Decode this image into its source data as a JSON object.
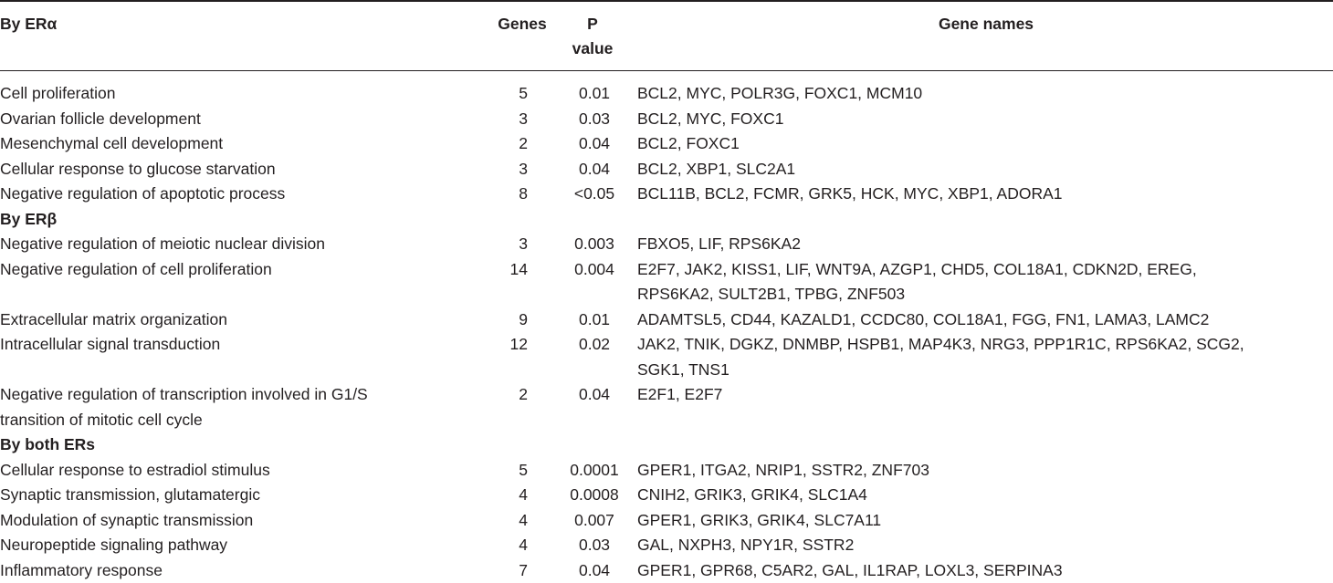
{
  "header": {
    "col1": "By ERα",
    "col2": "Genes",
    "col3": "P value",
    "col4": "Gene names"
  },
  "sections": [
    {
      "title": "",
      "rows": [
        {
          "term": "Cell proliferation",
          "genes": "5",
          "p": "0.01",
          "names": "BCL2, MYC, POLR3G, FOXC1, MCM10"
        },
        {
          "term": "Ovarian follicle development",
          "genes": "3",
          "p": "0.03",
          "names": "BCL2, MYC, FOXC1"
        },
        {
          "term": "Mesenchymal cell development",
          "genes": "2",
          "p": "0.04",
          "names": "BCL2, FOXC1"
        },
        {
          "term": "Cellular response to glucose starvation",
          "genes": "3",
          "p": "0.04",
          "names": "BCL2, XBP1, SLC2A1"
        },
        {
          "term": "Negative regulation of apoptotic process",
          "genes": "8",
          "p": "<0.05",
          "names": "BCL11B, BCL2, FCMR, GRK5, HCK, MYC, XBP1, ADORA1"
        }
      ]
    },
    {
      "title": "By ERβ",
      "rows": [
        {
          "term": "Negative regulation of meiotic nuclear division",
          "genes": "3",
          "p": "0.003",
          "names": "FBXO5, LIF, RPS6KA2"
        },
        {
          "term": "Negative regulation of cell proliferation",
          "genes": "14",
          "p": "0.004",
          "names": "E2F7, JAK2, KISS1, LIF, WNT9A, AZGP1, CHD5, COL18A1, CDKN2D, EREG,",
          "names2": "RPS6KA2, SULT2B1, TPBG, ZNF503"
        },
        {
          "term": "Extracellular matrix organization",
          "genes": "9",
          "p": "0.01",
          "names": "ADAMTSL5, CD44, KAZALD1, CCDC80, COL18A1, FGG, FN1, LAMA3, LAMC2"
        },
        {
          "term": "Intracellular signal transduction",
          "genes": "12",
          "p": "0.02",
          "names": "JAK2, TNIK, DGKZ, DNMBP, HSPB1, MAP4K3, NRG3, PPP1R1C, RPS6KA2, SCG2,",
          "names2": "SGK1, TNS1"
        },
        {
          "term": "Negative regulation of transcription involved in G1/S",
          "term2": "transition of mitotic cell cycle",
          "genes": "2",
          "p": "0.04",
          "names": "E2F1, E2F7"
        }
      ]
    },
    {
      "title": "By both ERs",
      "rows": [
        {
          "term": "Cellular response to estradiol stimulus",
          "genes": "5",
          "p": "0.0001",
          "names": "GPER1, ITGA2, NRIP1, SSTR2, ZNF703"
        },
        {
          "term": "Synaptic transmission, glutamatergic",
          "genes": "4",
          "p": "0.0008",
          "names": "CNIH2, GRIK3, GRIK4, SLC1A4"
        },
        {
          "term": "Modulation of synaptic transmission",
          "genes": "4",
          "p": "0.007",
          "names": "GPER1, GRIK3, GRIK4, SLC7A11"
        },
        {
          "term": "Neuropeptide signaling pathway",
          "genes": "4",
          "p": "0.03",
          "names": "GAL, NXPH3, NPY1R, SSTR2"
        },
        {
          "term": "Inflammatory response",
          "genes": "7",
          "p": "0.04",
          "names": "GPER1, GPR68, C5AR2, GAL, IL1RAP, LOXL3, SERPINA3"
        }
      ]
    }
  ]
}
